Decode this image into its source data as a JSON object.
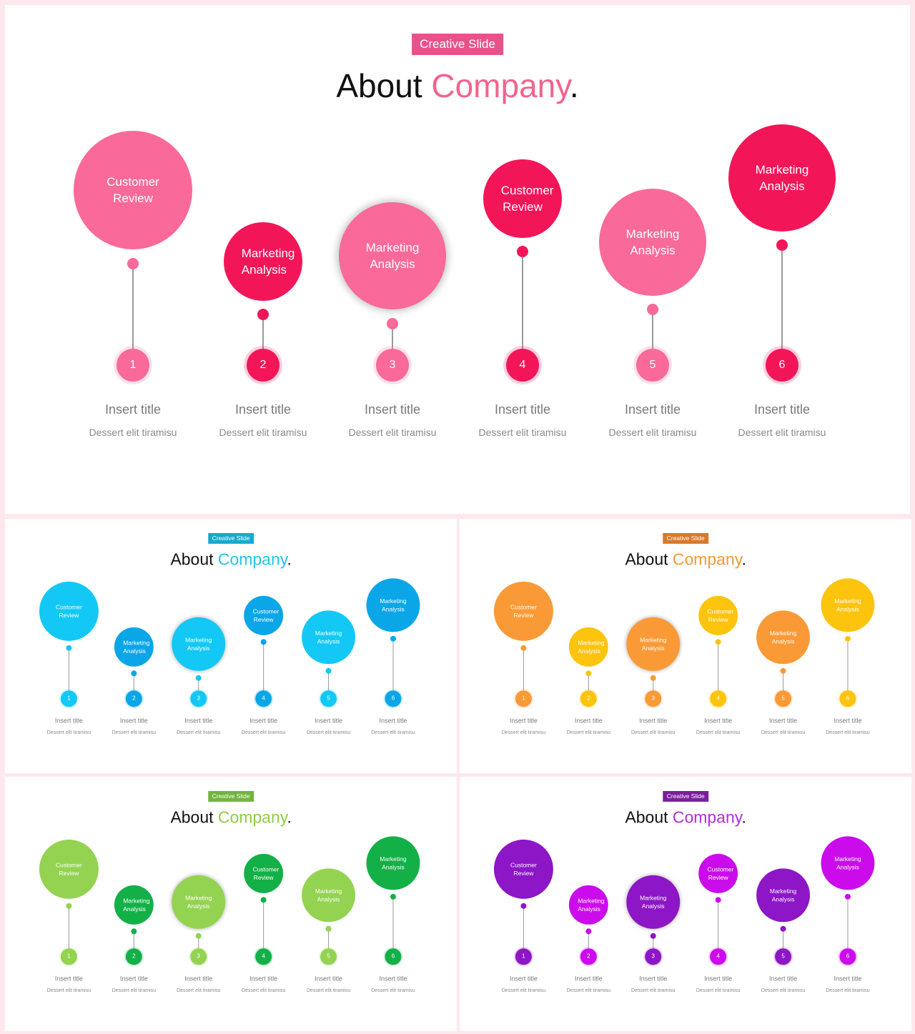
{
  "slides": [
    {
      "badge": "Creative Slide",
      "title_main": "About ",
      "title_accent": "Company",
      "title_end": ".",
      "accent": "#f0658d",
      "badge_color": "#e7528a",
      "colors": [
        "#f9699a",
        "#f21659"
      ],
      "items": [
        {
          "label": "Customer Review",
          "number": "1",
          "title": "Insert title",
          "desc": "Dessert elit tiramisu"
        },
        {
          "label": "Marketing Analysis",
          "number": "2",
          "title": "Insert title",
          "desc": "Dessert elit tiramisu"
        },
        {
          "label": "Marketing Analysis",
          "number": "3",
          "title": "Insert title",
          "desc": "Dessert elit tiramisu"
        },
        {
          "label": "Customer Review",
          "number": "4",
          "title": "Insert title",
          "desc": "Dessert elit tiramisu"
        },
        {
          "label": "Marketing Analysis",
          "number": "5",
          "title": "Insert title",
          "desc": "Dessert elit tiramisu"
        },
        {
          "label": "Marketing Analysis",
          "number": "6",
          "title": "Insert title",
          "desc": "Dessert elit tiramisu"
        }
      ]
    },
    {
      "badge": "Creative Slide",
      "title_main": "About ",
      "title_accent": "Company",
      "title_end": ".",
      "accent": "#22c6e8",
      "badge_color": "#16a9cf",
      "colors": [
        "#13c8f5",
        "#0aa6e8"
      ],
      "items": [
        {
          "label": "Customer Review",
          "number": "1",
          "title": "Insert title",
          "desc": "Dessert elit tiramisu"
        },
        {
          "label": "Marketing Analysis",
          "number": "2",
          "title": "Insert title",
          "desc": "Dessert elit tiramisu"
        },
        {
          "label": "Marketing Analysis",
          "number": "3",
          "title": "Insert title",
          "desc": "Dessert elit tiramisu"
        },
        {
          "label": "Customer Review",
          "number": "4",
          "title": "Insert title",
          "desc": "Dessert elit tiramisu"
        },
        {
          "label": "Marketing Analysis",
          "number": "5",
          "title": "Insert title",
          "desc": "Dessert elit tiramisu"
        },
        {
          "label": "Marketing Analysis",
          "number": "6",
          "title": "Insert title",
          "desc": "Dessert elit tiramisu"
        }
      ]
    },
    {
      "badge": "Creative Slide",
      "title_main": "About ",
      "title_accent": "Company",
      "title_end": ".",
      "accent": "#f29a3a",
      "badge_color": "#d9792a",
      "colors": [
        "#fa9a36",
        "#fdc40e"
      ],
      "items": [
        {
          "label": "Customer Review",
          "number": "1",
          "title": "Insert title",
          "desc": "Dessert elit tiramisu"
        },
        {
          "label": "Marketing Analysis",
          "number": "2",
          "title": "Insert title",
          "desc": "Dessert elit tiramisu"
        },
        {
          "label": "Marketing Analysis",
          "number": "3",
          "title": "Insert title",
          "desc": "Dessert elit tiramisu"
        },
        {
          "label": "Customer Review",
          "number": "4",
          "title": "Insert title",
          "desc": "Dessert elit tiramisu"
        },
        {
          "label": "Marketing Analysis",
          "number": "5",
          "title": "Insert title",
          "desc": "Dessert elit tiramisu"
        },
        {
          "label": "Marketing Analysis",
          "number": "6",
          "title": "Insert title",
          "desc": "Dessert elit tiramisu"
        }
      ]
    },
    {
      "badge": "Creative Slide",
      "title_main": "About ",
      "title_accent": "Company",
      "title_end": ".",
      "accent": "#8fcd45",
      "badge_color": "#72b43c",
      "colors": [
        "#94d351",
        "#13b048"
      ],
      "items": [
        {
          "label": "Customer Review",
          "number": "1",
          "title": "Insert title",
          "desc": "Dessert elit tiramisu"
        },
        {
          "label": "Marketing Analysis",
          "number": "2",
          "title": "Insert title",
          "desc": "Dessert elit tiramisu"
        },
        {
          "label": "Marketing Analysis",
          "number": "3",
          "title": "Insert title",
          "desc": "Dessert elit tiramisu"
        },
        {
          "label": "Customer Review",
          "number": "4",
          "title": "Insert title",
          "desc": "Dessert elit tiramisu"
        },
        {
          "label": "Marketing Analysis",
          "number": "5",
          "title": "Insert title",
          "desc": "Dessert elit tiramisu"
        },
        {
          "label": "Marketing Analysis",
          "number": "6",
          "title": "Insert title",
          "desc": "Dessert elit tiramisu"
        }
      ]
    },
    {
      "badge": "Creative Slide",
      "title_main": "About ",
      "title_accent": "Company",
      "title_end": ".",
      "accent": "#b22ed6",
      "badge_color": "#7a1f9e",
      "colors": [
        "#8d16c6",
        "#cc0bed"
      ],
      "items": [
        {
          "label": "Customer Review",
          "number": "1",
          "title": "Insert title",
          "desc": "Dessert elit tiramisu"
        },
        {
          "label": "Marketing Analysis",
          "number": "2",
          "title": "Insert title",
          "desc": "Dessert elit tiramisu"
        },
        {
          "label": "Marketing Analysis",
          "number": "3",
          "title": "Insert title",
          "desc": "Dessert elit tiramisu"
        },
        {
          "label": "Customer Review",
          "number": "4",
          "title": "Insert title",
          "desc": "Dessert elit tiramisu"
        },
        {
          "label": "Marketing Analysis",
          "number": "5",
          "title": "Insert title",
          "desc": "Dessert elit tiramisu"
        },
        {
          "label": "Marketing Analysis",
          "number": "6",
          "title": "Insert title",
          "desc": "Dessert elit tiramisu"
        }
      ]
    }
  ]
}
